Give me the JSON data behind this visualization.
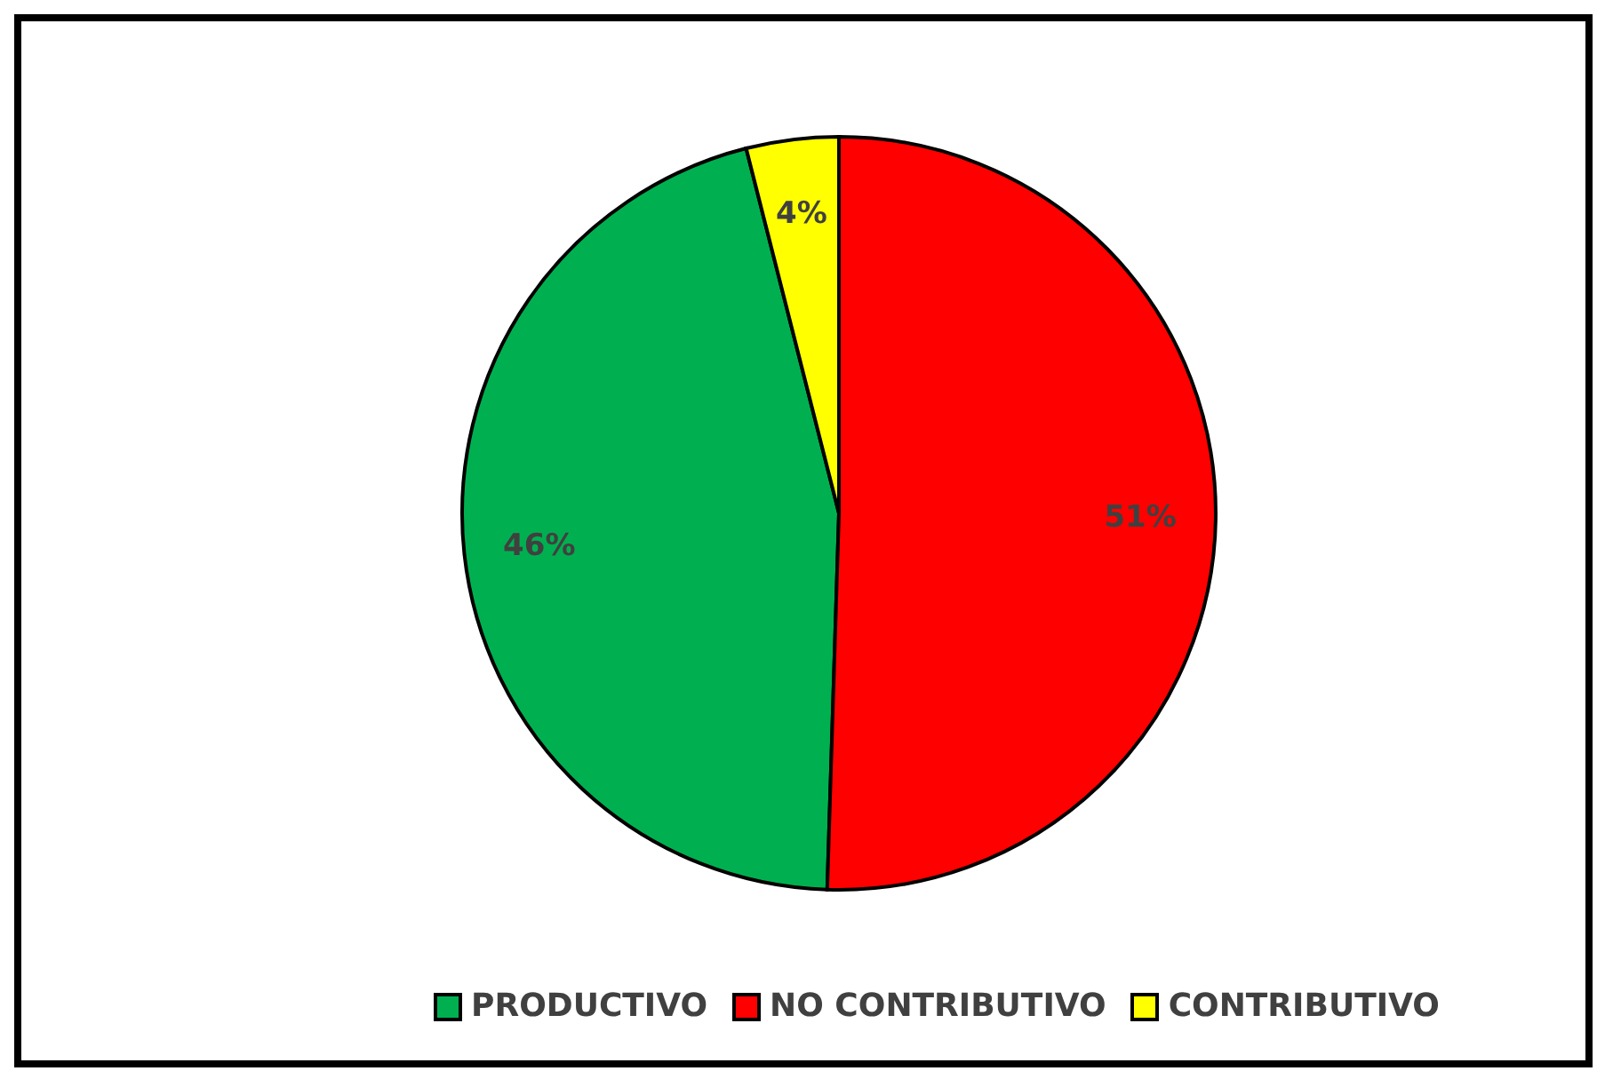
{
  "chart_data": {
    "type": "pie",
    "categories": [
      "PRODUCTIVO",
      "NO CONTRIBUTIVO",
      "CONTRIBUTIVO"
    ],
    "values": [
      46,
      51,
      4
    ],
    "colors": [
      "#00b050",
      "#ff0000",
      "#ffff00"
    ],
    "value_labels": [
      "46%",
      "51%",
      "4%"
    ],
    "legend": "bottom"
  }
}
